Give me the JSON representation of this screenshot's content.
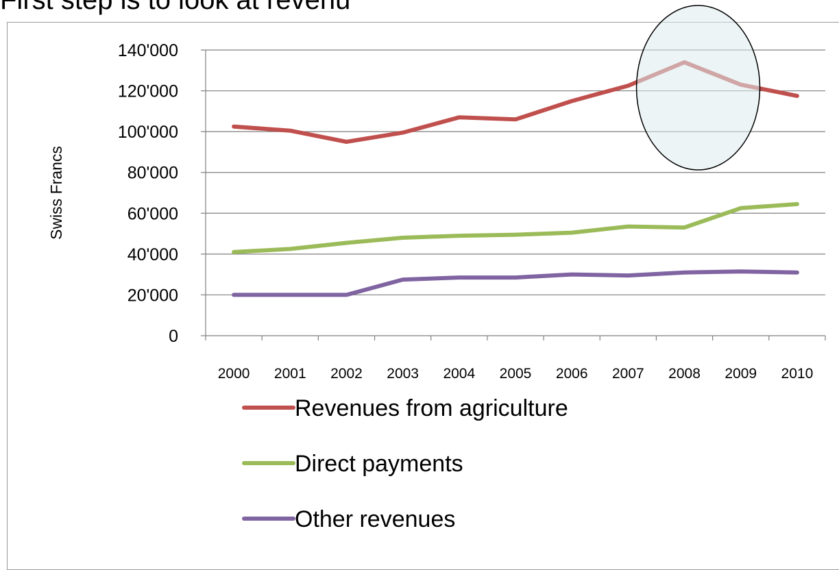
{
  "page": {
    "title": "First step is to look at revenu"
  },
  "colors": {
    "grid": "#7f7f7f",
    "highlight_fill": "#dcebee",
    "highlight_stroke": "#000000"
  },
  "chart_data": {
    "type": "line",
    "ylabel": "Swiss Francs",
    "xlabel": "",
    "ylim": [
      0,
      140000
    ],
    "yticks": [
      0,
      20000,
      40000,
      60000,
      80000,
      100000,
      120000,
      140000
    ],
    "ytick_labels": [
      "0",
      "20'000",
      "40'000",
      "60'000",
      "80'000",
      "100'000",
      "120'000",
      "140'000"
    ],
    "categories": [
      "2000",
      "2001",
      "2002",
      "2003",
      "2004",
      "2005",
      "2006",
      "2007",
      "2008",
      "2009",
      "2010"
    ],
    "grid": "horizontal",
    "legend_position": "bottom",
    "series": [
      {
        "name": "Revenues from agriculture",
        "color": "#c0504d",
        "values": [
          102500,
          100500,
          95000,
          99500,
          107000,
          106000,
          115000,
          122500,
          134000,
          123000,
          117500
        ]
      },
      {
        "name": "Direct payments",
        "color": "#9bbb59",
        "values": [
          41000,
          42500,
          45500,
          48000,
          49000,
          49500,
          50500,
          53500,
          53000,
          62500,
          64500
        ]
      },
      {
        "name": "Other revenues",
        "color": "#8064a2",
        "values": [
          20000,
          20000,
          20000,
          27500,
          28500,
          28500,
          30000,
          29500,
          31000,
          31500,
          31000
        ]
      }
    ],
    "highlight": {
      "category": "2008",
      "description": ""
    }
  }
}
